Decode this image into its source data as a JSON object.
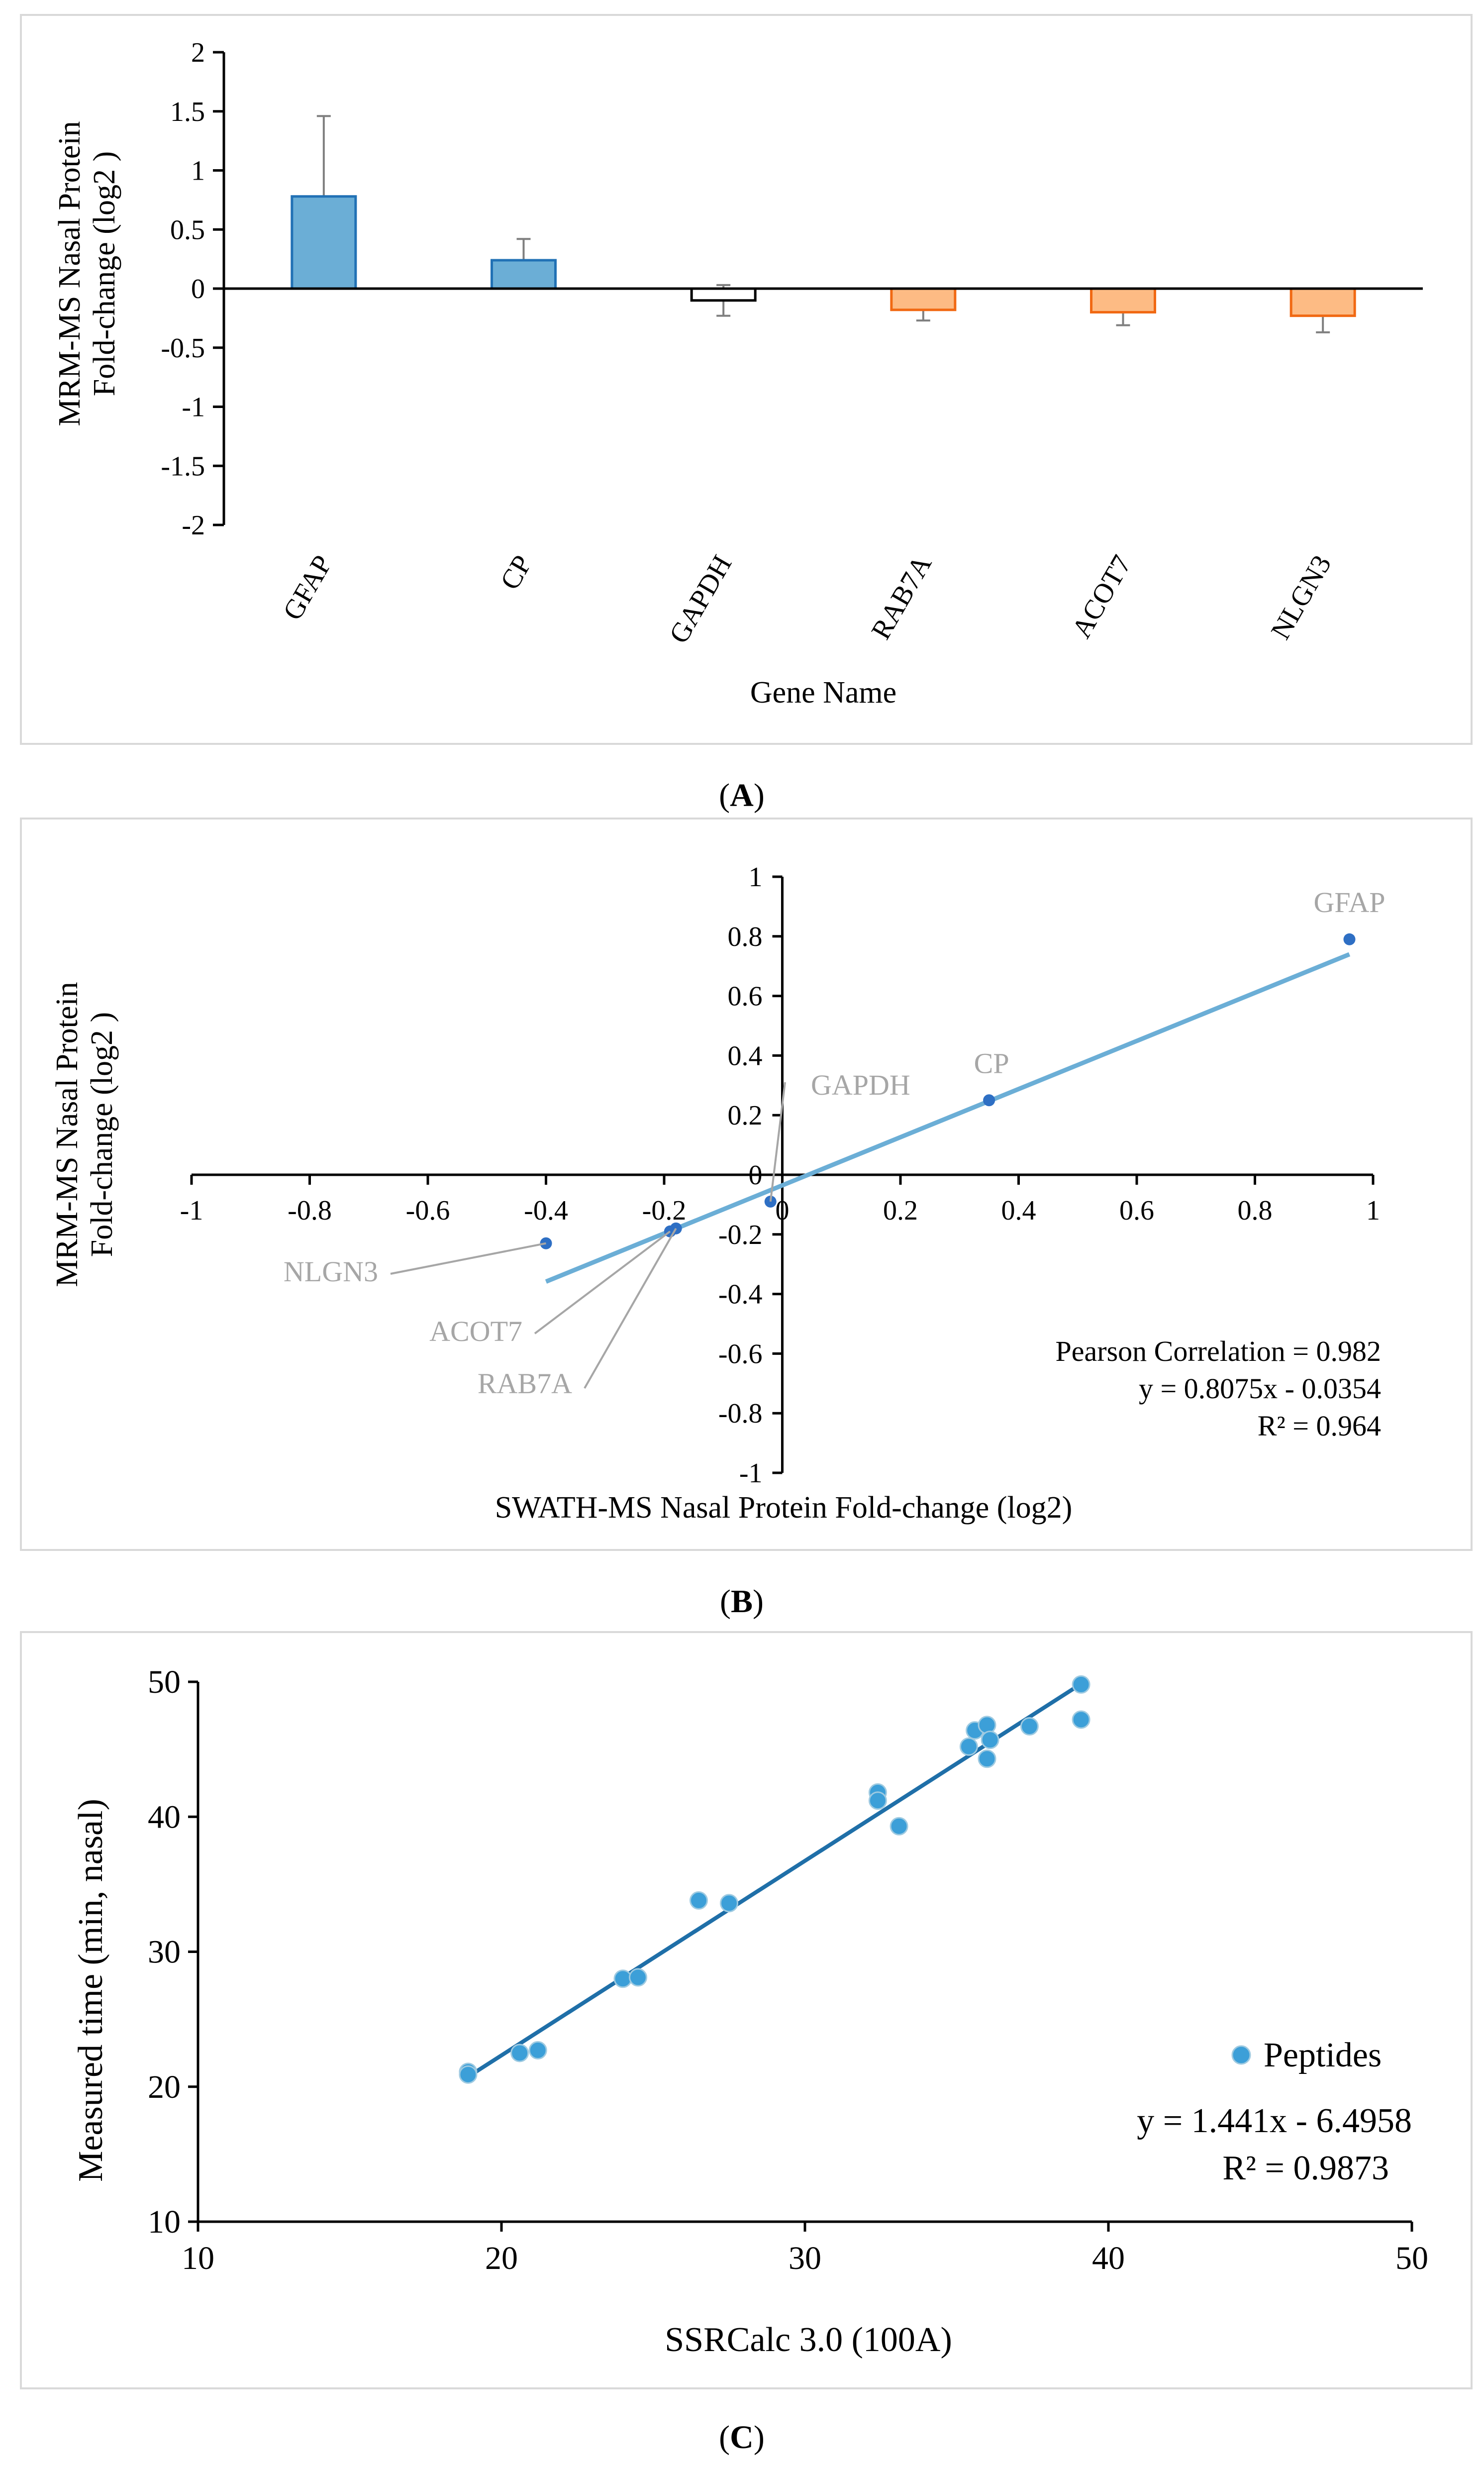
{
  "chart_data": [
    {
      "panel": "(A)",
      "panel_letter": "A",
      "type": "bar",
      "xlabel": "Gene Name",
      "ylabel_line1": "MRM-MS Nasal Protein",
      "ylabel_line2": "Fold-change (log2 )",
      "ylim": [
        -2,
        2
      ],
      "yticks": [
        "2",
        "1.5",
        "1",
        "0.5",
        "0",
        "-0.5",
        "-1",
        "-1.5",
        "-2"
      ],
      "categories": [
        "GFAP",
        "CP",
        "GAPDH",
        "RAB7A",
        "ACOT7",
        "NLGN3"
      ],
      "values": [
        0.78,
        0.24,
        -0.1,
        -0.18,
        -0.2,
        -0.23
      ],
      "errors": [
        0.68,
        0.18,
        0.13,
        0.09,
        0.11,
        0.14
      ],
      "colors": {
        "up_fill": "#6baed6",
        "up_stroke": "#2171b5",
        "neutral_fill": "#ffffff",
        "neutral_stroke": "#000000",
        "down_fill": "#fdbb84",
        "down_stroke": "#f16913",
        "error_bar": "#7f7f7f"
      }
    },
    {
      "panel": "(B)",
      "panel_letter": "B",
      "type": "scatter",
      "xlabel": "SWATH-MS Nasal Protein Fold-change (log2)",
      "ylabel_line1": "MRM-MS Nasal Protein",
      "ylabel_line2": "Fold-change (log2 )",
      "xlim": [
        -1,
        1
      ],
      "ylim": [
        -1,
        1
      ],
      "xticks": [
        "-1",
        "-0.8",
        "-0.6",
        "-0.4",
        "-0.2",
        "0",
        "0.2",
        "0.4",
        "0.6",
        "0.8",
        "1"
      ],
      "yticks": [
        "1",
        "0.8",
        "0.6",
        "0.4",
        "0.2",
        "0",
        "-0.2",
        "-0.4",
        "-0.6",
        "-0.8",
        "-1"
      ],
      "points": [
        {
          "name": "GFAP",
          "x": 0.96,
          "y": 0.79
        },
        {
          "name": "CP",
          "x": 0.35,
          "y": 0.25
        },
        {
          "name": "GAPDH",
          "x": -0.02,
          "y": -0.09
        },
        {
          "name": "RAB7A",
          "x": -0.18,
          "y": -0.18
        },
        {
          "name": "ACOT7",
          "x": -0.19,
          "y": -0.19
        },
        {
          "name": "NLGN3",
          "x": -0.4,
          "y": -0.23
        }
      ],
      "trendline": {
        "slope": 0.8075,
        "intercept": -0.0354,
        "x_range": [
          -0.4,
          0.96
        ]
      },
      "annotations": [
        "Pearson Correlation = 0.982",
        "y = 0.8075x - 0.0354",
        "R² =  0.964"
      ],
      "colors": {
        "point": "#2e6fc4",
        "line": "#6baed6",
        "label": "#a6a6a6"
      }
    },
    {
      "panel": "(C)",
      "panel_letter": "C",
      "type": "scatter",
      "xlabel": "SSRCalc 3.0 (100A)",
      "ylabel": "Measured time (min, nasal)",
      "xlim": [
        10,
        50
      ],
      "ylim": [
        10,
        50
      ],
      "xticks": [
        "10",
        "20",
        "30",
        "40",
        "50"
      ],
      "yticks": [
        "50",
        "40",
        "30",
        "20",
        "10"
      ],
      "series": [
        {
          "name": "Peptides",
          "points": [
            [
              18.9,
              21.1
            ],
            [
              18.9,
              20.9
            ],
            [
              20.6,
              22.5
            ],
            [
              21.2,
              22.7
            ],
            [
              24.0,
              28.0
            ],
            [
              24.5,
              28.1
            ],
            [
              26.5,
              33.8
            ],
            [
              27.5,
              33.6
            ],
            [
              32.4,
              41.8
            ],
            [
              32.4,
              41.2
            ],
            [
              33.1,
              39.3
            ],
            [
              35.4,
              45.2
            ],
            [
              35.6,
              46.4
            ],
            [
              36.0,
              46.8
            ],
            [
              36.1,
              45.7
            ],
            [
              36.0,
              44.3
            ],
            [
              37.4,
              46.7
            ],
            [
              39.1,
              49.8
            ],
            [
              39.1,
              47.2
            ]
          ]
        }
      ],
      "trendline": {
        "slope": 1.441,
        "intercept": -6.4958,
        "x_range": [
          18.9,
          39.1
        ]
      },
      "annotations": [
        "y = 1.441x - 6.4958",
        "R² = 0.9873"
      ],
      "colors": {
        "point": "#3c9fd8",
        "line": "#1f6fa8"
      }
    }
  ]
}
